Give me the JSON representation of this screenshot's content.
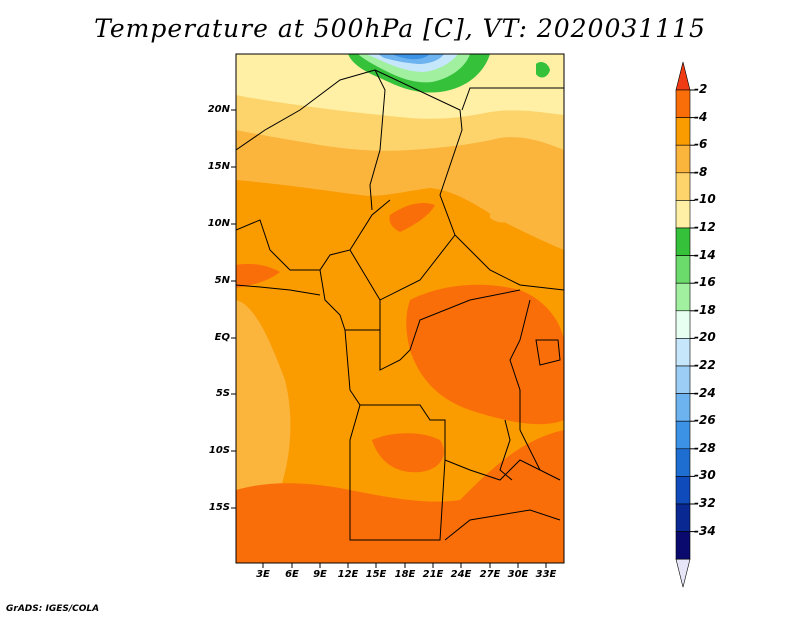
{
  "title": "Temperature at 500hPa [C], VT: 2020031115",
  "credit": "GrADS: IGES/COLA",
  "map": {
    "variable": "Temperature",
    "level": "500hPa",
    "units": "C",
    "valid_time": "2020031115",
    "lat_labels": [
      "20N",
      "15N",
      "10N",
      "5N",
      "EQ",
      "5S",
      "10S",
      "15S"
    ],
    "lon_labels": [
      "3E",
      "6E",
      "9E",
      "12E",
      "15E",
      "18E",
      "21E",
      "24E",
      "27E",
      "30E",
      "33E"
    ]
  },
  "colorbar": {
    "levels": [
      "-2",
      "-4",
      "-6",
      "-8",
      "-10",
      "-12",
      "-14",
      "-16",
      "-18",
      "-20",
      "-22",
      "-24",
      "-26",
      "-28",
      "-30",
      "-32",
      "-34"
    ],
    "colors": [
      "#f03c14",
      "#fa6e0a",
      "#fa9b00",
      "#fbb43c",
      "#fdd46b",
      "#fff0a5",
      "#36c13b",
      "#6bdc6b",
      "#a0f0a0",
      "#e6fff0",
      "#c6e6fb",
      "#9ccdf5",
      "#6cb3f0",
      "#3c93e6",
      "#1e6ed2",
      "#0f4bbb",
      "#0a2891",
      "#0a0a6e",
      "#e6e6f8"
    ]
  }
}
